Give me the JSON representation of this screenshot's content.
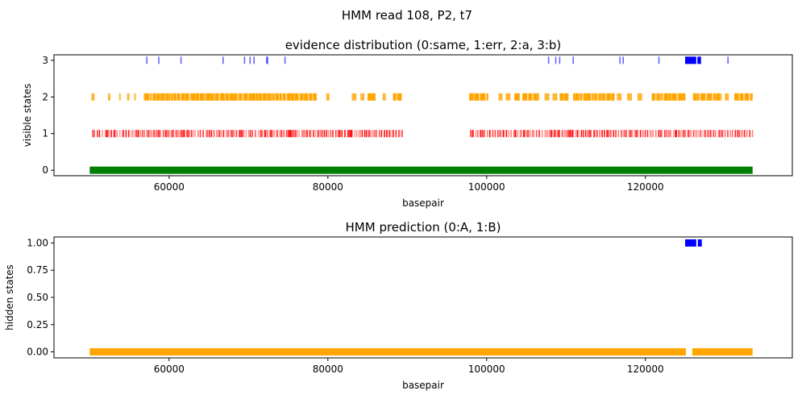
{
  "figure": {
    "suptitle": "HMM read 108, P2, t7"
  },
  "chart_data": [
    {
      "type": "scatter",
      "title": "evidence distribution (0:same, 1:err, 2:a, 3:b)",
      "xlabel": "basepair",
      "ylabel": "visible states",
      "xlim": [
        45500,
        138500
      ],
      "ylim": [
        -0.15,
        3.15
      ],
      "xticks": [
        60000,
        80000,
        100000,
        120000
      ],
      "xtick_labels": [
        "60000",
        "80000",
        "100000",
        "120000"
      ],
      "yticks": [
        0,
        1,
        2,
        3
      ],
      "ytick_labels": [
        "0",
        "1",
        "2",
        "3"
      ],
      "grid": false,
      "colors": {
        "0": "#008000",
        "1": "#ff0000",
        "2": "#ffa500",
        "3": "#0000ff"
      },
      "state0_range": [
        50000,
        133500
      ],
      "state1_ranges": [
        [
          50300,
          89300
        ],
        [
          97900,
          133500
        ]
      ],
      "state2_ranges": [
        [
          50200,
          50600
        ],
        [
          52300,
          52600
        ],
        [
          53700,
          53900
        ],
        [
          54700,
          55000
        ],
        [
          55600,
          55800
        ],
        [
          56800,
          57100
        ],
        [
          57000,
          74200
        ],
        [
          74300,
          78600
        ],
        [
          79800,
          80200
        ],
        [
          83000,
          83600
        ],
        [
          84100,
          84600
        ],
        [
          85000,
          86000
        ],
        [
          86900,
          87300
        ],
        [
          88200,
          89300
        ],
        [
          97800,
          100200
        ],
        [
          101500,
          102000
        ],
        [
          102400,
          103000
        ],
        [
          103500,
          104200
        ],
        [
          104500,
          106600
        ],
        [
          107300,
          107900
        ],
        [
          108300,
          108900
        ],
        [
          109200,
          110300
        ],
        [
          110900,
          116100
        ],
        [
          116400,
          117000
        ],
        [
          117700,
          118300
        ],
        [
          119000,
          119600
        ],
        [
          120800,
          125100
        ],
        [
          126000,
          129600
        ],
        [
          130000,
          130500
        ],
        [
          131200,
          133500
        ]
      ],
      "state3_points": [
        57200,
        58700,
        61500,
        66800,
        69500,
        70200,
        70700,
        72300,
        72400,
        74600,
        107800,
        108700,
        109200,
        110900,
        116800,
        117200,
        121700,
        125100,
        125400,
        125700,
        126000,
        126200,
        126600,
        126900,
        130400
      ],
      "state3_dense_range": [
        125000,
        126400
      ],
      "state3_dense_range2": [
        126600,
        127000
      ]
    },
    {
      "type": "scatter",
      "title": "HMM prediction (0:A, 1:B)",
      "xlabel": "basepair",
      "ylabel": "hidden states",
      "xlim": [
        45500,
        138500
      ],
      "ylim": [
        -0.055,
        1.055
      ],
      "xticks": [
        60000,
        80000,
        100000,
        120000
      ],
      "xtick_labels": [
        "60000",
        "80000",
        "100000",
        "120000"
      ],
      "yticks": [
        0,
        0.25,
        0.5,
        0.75,
        1.0
      ],
      "ytick_labels": [
        "0.00",
        "0.25",
        "0.50",
        "0.75",
        "1.00"
      ],
      "grid": false,
      "colors": {
        "0": "#ffa500",
        "1": "#0000ff"
      },
      "state0_ranges": [
        [
          50000,
          125100
        ],
        [
          125900,
          133500
        ]
      ],
      "state1_ranges": [
        [
          125000,
          126400
        ],
        [
          126600,
          127100
        ]
      ]
    }
  ]
}
